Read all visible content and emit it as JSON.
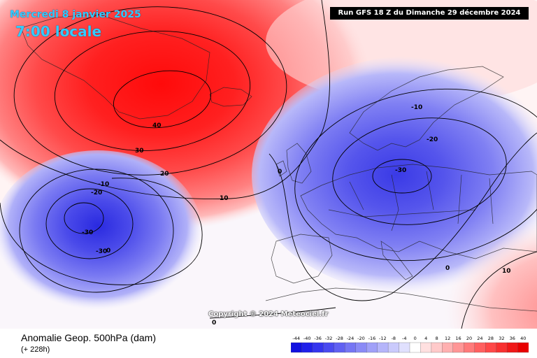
{
  "header": {
    "date": "Mercredi 8 janvier 2025",
    "time": "7:00 locale",
    "run": "Run GFS 18 Z du Dimanche 29 décembre 2024"
  },
  "copyright": "Copyright © 2024 Meteociel.fr",
  "footer": {
    "title": "Anomalie Geop. 500hPa (dam)",
    "subtitle": "(+ 228h)"
  },
  "legend": {
    "labels": [
      "-44",
      "-40",
      "-36",
      "-32",
      "-28",
      "-24",
      "-20",
      "-16",
      "-12",
      "-8",
      "-4",
      "0",
      "4",
      "8",
      "12",
      "16",
      "20",
      "24",
      "28",
      "32",
      "36",
      "40"
    ],
    "colors": [
      "#1010e0",
      "#2020ea",
      "#3535ee",
      "#4a4af0",
      "#6060f2",
      "#7575f4",
      "#8a8af6",
      "#a0a0f8",
      "#b5b5fa",
      "#cacafc",
      "#e0e0fe",
      "#ffffff",
      "#ffe0e0",
      "#ffcaca",
      "#ffb0b0",
      "#ff9696",
      "#ff7a7a",
      "#ff6060",
      "#ff4848",
      "#f83030",
      "#f01818",
      "#e80000"
    ]
  },
  "contour_labels": {
    "greenland": [
      "40",
      "30",
      "20",
      "10"
    ],
    "atlantic_low": [
      "-10",
      "-20",
      "-30",
      "-30",
      "0"
    ],
    "europe_low": [
      "-10",
      "-20",
      "-30"
    ],
    "zero_lines": [
      "0",
      "0",
      "0"
    ],
    "east": "10"
  },
  "colors": {
    "title": "#33ccff",
    "high_core": "#ff1a1a",
    "low_core": "#3a3ae6"
  }
}
